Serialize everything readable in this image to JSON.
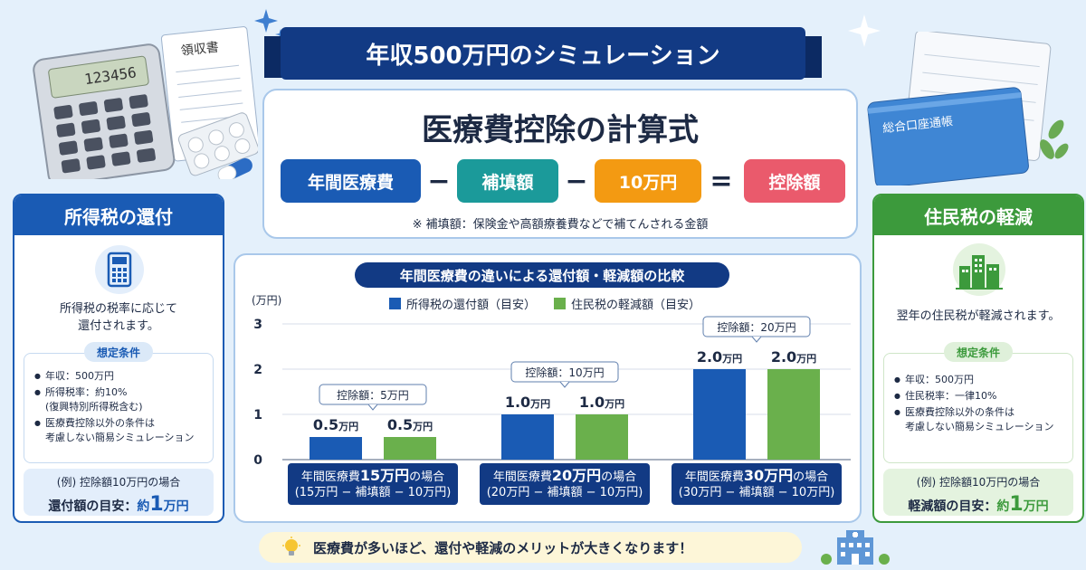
{
  "banner_title": "年収500万円のシミュレーション",
  "formula": {
    "title": "医療費控除の計算式",
    "terms": [
      "年間医療費",
      "補填額",
      "10万円",
      "控除額"
    ],
    "ops": [
      "−",
      "−",
      "="
    ],
    "colors": [
      "#1a5bb4",
      "#1b9a9a",
      "#f39a12",
      "#ea5a6c"
    ],
    "note": "※ 補填額：保険金や高額療養費などで補てんされる金額"
  },
  "income_tax": {
    "title": "所得税の還付",
    "desc": [
      "所得税の税率に応じて",
      "還付されます。"
    ],
    "conditions_label": "想定条件",
    "conditions": [
      "年収：500万円",
      "所得税率：約10%",
      "(復興特別所得税含む)",
      "医療費控除以外の条件は",
      "考慮しない簡易シミュレーション"
    ],
    "example_line1": "(例) 控除額10万円の場合",
    "example_prefix": "還付額の目安：",
    "example_value_pre": "約",
    "example_value": "1",
    "example_unit": "万円",
    "color": "#1a5bb4",
    "icon": "calculator-icon"
  },
  "resident_tax": {
    "title": "住民税の軽減",
    "desc": [
      "翌年の住民税が軽減されます。"
    ],
    "conditions_label": "想定条件",
    "conditions": [
      "年収：500万円",
      "住民税率：一律10%",
      "医療費控除以外の条件は",
      "考慮しない簡易シミュレーション"
    ],
    "example_line1": "(例) 控除額10万円の場合",
    "example_prefix": "軽減額の目安：",
    "example_value_pre": "約",
    "example_value": "1",
    "example_unit": "万円",
    "color": "#3c9a3c",
    "icon": "city-buildings-icon"
  },
  "decor": {
    "receipt_label": "領収書",
    "calculator_display": "123456",
    "passbook_label": "総合口座通帳"
  },
  "chart_data": {
    "type": "bar",
    "title": "年間医療費の違いによる還付額・軽減額の比較",
    "ylabel": "(万円)",
    "ylim": [
      0,
      3
    ],
    "yticks": [
      "0",
      "1",
      "2",
      "3"
    ],
    "unit_label": "万円",
    "series": [
      {
        "name": "所得税の還付額（目安）",
        "color": "#1a5bb4",
        "values": [
          0.5,
          1.0,
          2.0
        ]
      },
      {
        "name": "住民税の軽減額（目安）",
        "color": "#6ab04c",
        "values": [
          0.5,
          1.0,
          2.0
        ]
      }
    ],
    "value_labels": [
      [
        "0.5",
        "0.5"
      ],
      [
        "1.0",
        "1.0"
      ],
      [
        "2.0",
        "2.0"
      ]
    ],
    "annotations": [
      "控除額：5万円",
      "控除額：10万円",
      "控除額：20万円"
    ],
    "categories": [
      {
        "line1_pre": "年間医療費",
        "line1_big": "15万円",
        "line1_post": "の場合",
        "line2": "(15万円 − 補填額 − 10万円)"
      },
      {
        "line1_pre": "年間医療費",
        "line1_big": "20万円",
        "line1_post": "の場合",
        "line2": "(20万円 − 補填額 − 10万円)"
      },
      {
        "line1_pre": "年間医療費",
        "line1_big": "30万円",
        "line1_post": "の場合",
        "line2": "(30万円 − 補填額 − 10万円)"
      }
    ]
  },
  "bottom_message": "医療費が多いほど、還付や軽減のメリットが大きくなります！"
}
